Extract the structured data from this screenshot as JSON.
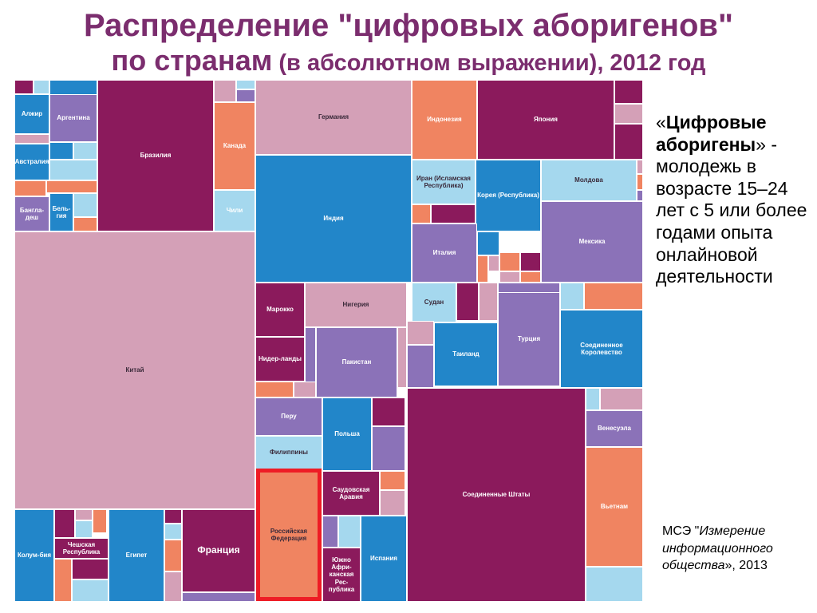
{
  "header": {
    "title_line1": "Распределение \"цифровых аборигенов\"",
    "title_line2_main": "по странам",
    "title_line2_rest": " (в абсолютном выражении), 2012 год"
  },
  "definition": {
    "open_quote": "«",
    "term": "Цифровые аборигены",
    "close_quote": "»",
    "text": " - молодежь в возрасте 15–24 лет с 5 или более годами опыта онлайновой деятельности"
  },
  "source": {
    "prefix": "МСЭ \"",
    "title": "Измерение информационного общества",
    "suffix": "», 2013"
  },
  "palette": {
    "plum": "#8b1a5c",
    "pink": "#d4a0b7",
    "blue": "#2286c9",
    "lightblue": "#a5d8ee",
    "orange": "#f08461",
    "lavender": "#8b72b8",
    "highlight": "#ee1c25"
  },
  "chart_data": {
    "type": "treemap",
    "title": "Распределение \"цифровых аборигенов\" по странам (в абсолютном выражении), 2012 год",
    "highlighted": "Российская Федерация",
    "labeled_countries": [
      "Китай",
      "Соединенные Штаты",
      "Индия",
      "Бразилия",
      "Германия",
      "Япония",
      "Индонезия",
      "Мексика",
      "Россия",
      "Франция",
      "Турция",
      "Соединенное Королевство",
      "Нигерия",
      "Пакистан",
      "Вьетнам",
      "Египет",
      "Таиланд",
      "Италия",
      "Польша",
      "Испания",
      "Аргентина",
      "Канада",
      "Корея",
      "Иран",
      "Молдова",
      "Марокко",
      "Нидерланды",
      "Филиппины",
      "Перу",
      "Саудовская Аравия",
      "ЮАР",
      "Венесуэла",
      "Судан",
      "Колумбия",
      "Чешская Республика",
      "Австралия",
      "Алжир",
      "Бангладеш",
      "Бельгия",
      "Чили"
    ]
  },
  "cells": {
    "alzhir": "Алжир",
    "argentina": "Аргентина",
    "brazil": "Бразилия",
    "canada": "Канада",
    "germany": "Германия",
    "indonesia": "Индонезия",
    "japan": "Япония",
    "australia": "Австралия",
    "bangladesh": "Бангла-деш",
    "belgium": "Бель-гия",
    "chile": "Чили",
    "india": "Индия",
    "iran": "Иран (Исламская Республика)",
    "korea": "Корея (Республика)",
    "moldova": "Молдова",
    "mexico": "Мексика",
    "italy": "Италия",
    "china": "Китай",
    "morocco": "Марокко",
    "nigeria": "Нигерия",
    "sudan": "Судан",
    "netherlands": "Нидер-ланды",
    "pakistan": "Пакистан",
    "thailand": "Таиланд",
    "turkey": "Турция",
    "uk": "Соединенное Королевство",
    "peru": "Перу",
    "poland": "Польша",
    "venezuela": "Венесуэла",
    "philippines": "Филиппины",
    "usa": "Соединенные Штаты",
    "saudi": "Саудовская Аравия",
    "russia": "Российская Федерация",
    "vietnam": "Вьетнам",
    "colombia": "Колум-бия",
    "czech": "Чешская Республика",
    "egypt": "Египет",
    "france": "Франция",
    "spain": "Испания",
    "southafrica": "Южно Афри-канская Рес-публика"
  }
}
